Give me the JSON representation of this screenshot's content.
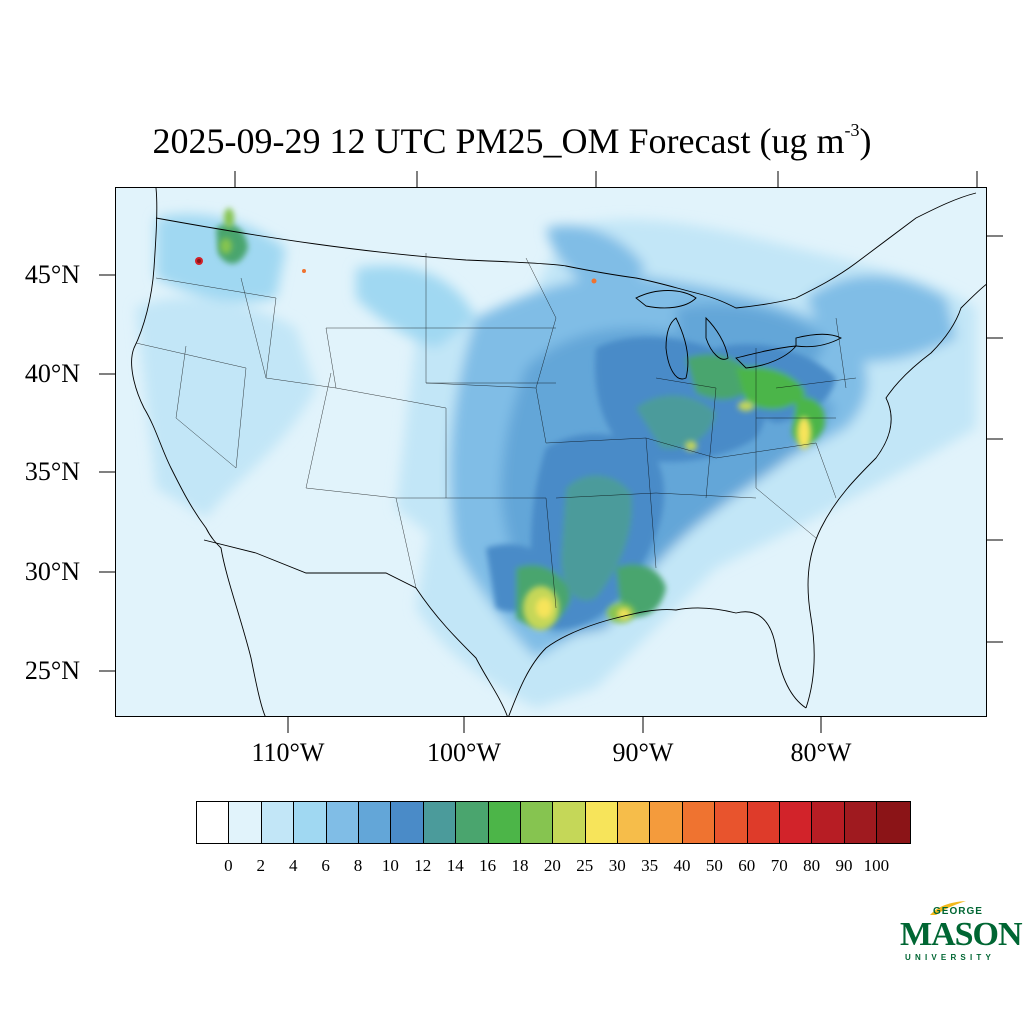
{
  "title": {
    "main": "2025-09-29 12 UTC PM25_OM Forecast (ug m",
    "exponent": "-3",
    "close": ")"
  },
  "map": {
    "latitude_labels": [
      "45°N",
      "40°N",
      "35°N",
      "30°N",
      "25°N"
    ],
    "longitude_labels": [
      "110°W",
      "100°W",
      "90°W",
      "80°W"
    ],
    "background_color": "#e1f3fb"
  },
  "colorbar": {
    "colors": [
      "#ffffff",
      "#e1f3fb",
      "#c2e6f7",
      "#a0d8f2",
      "#80bde6",
      "#63a6d8",
      "#4a8bc8",
      "#4b9b9b",
      "#4aa56e",
      "#4cb548",
      "#86c450",
      "#c5d758",
      "#f7e45a",
      "#f6bd4a",
      "#f49b3c",
      "#ef7330",
      "#e8542d",
      "#de3b2a",
      "#d2232a",
      "#b71d24",
      "#9f1a1f",
      "#8b1417"
    ],
    "labels": [
      "0",
      "2",
      "4",
      "6",
      "8",
      "10",
      "12",
      "14",
      "16",
      "18",
      "20",
      "25",
      "30",
      "35",
      "40",
      "50",
      "60",
      "70",
      "80",
      "90",
      "100"
    ]
  },
  "logo": {
    "line1": "GEORGE",
    "line2": "MASON",
    "line3": "UNIVERSITY",
    "color": "#006633",
    "accent": "#f2b91c"
  }
}
